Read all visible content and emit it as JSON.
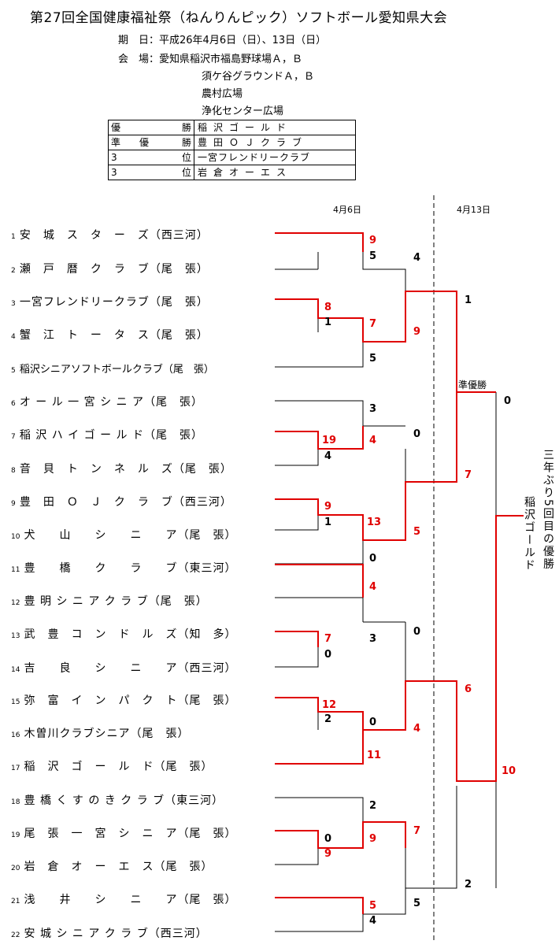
{
  "title": "第27回全国健康福祉祭（ねんりんピック）ソフトボール愛知県大会",
  "info": {
    "date_line": "期　日：平成26年4月6日（日）、13日（日）",
    "venue_line": "会　場：愛知県稲沢市福島野球場Ａ，Ｂ",
    "venue_extra": [
      "須ケ谷グラウンドＡ，Ｂ",
      "農村広場",
      "浄化センター広場"
    ]
  },
  "results": [
    {
      "rank_left": "優",
      "rank_right": "勝",
      "team": "稲沢ゴールド"
    },
    {
      "rank_left": "準　　優",
      "rank_right": "勝",
      "team": "豊田ＯＪクラブ"
    },
    {
      "rank_left": "3",
      "rank_right": "位",
      "team": "一宮フレンドリークラブ"
    },
    {
      "rank_left": "3",
      "rank_right": "位",
      "team": "岩倉オーエス"
    }
  ],
  "dates": [
    "4月6日",
    "4月13日"
  ],
  "teams": [
    {
      "no": "1",
      "name": "安　城　ス　タ　ー　ズ（西三河）"
    },
    {
      "no": "2",
      "name": "瀬　戸　暦　ク　ラ　ブ（尾　張）"
    },
    {
      "no": "3",
      "name": "一宮フレンドリークラブ（尾　張）"
    },
    {
      "no": "4",
      "name": "蟹　江　ト　ー　タ　ス（尾　張）"
    },
    {
      "no": "5",
      "name": "稲沢シニアソフトボールクラブ（尾　張）"
    },
    {
      "no": "6",
      "name": "オ ー ル 一 宮 シ ニ ア（尾　張）"
    },
    {
      "no": "7",
      "name": "稲 沢 ハ イ ゴ ー ル ド（尾　張）"
    },
    {
      "no": "8",
      "name": "音　貝　ト　ン　ネ　ル　ズ（尾　張）"
    },
    {
      "no": "9",
      "name": "豊　田　Ｏ　Ｊ　ク　ラ　ブ（西三河）"
    },
    {
      "no": "10",
      "name": "犬　　山　　シ　　ニ　　ア（尾　張）"
    },
    {
      "no": "11",
      "name": "豊　　橋　　ク　　ラ　　ブ（東三河）"
    },
    {
      "no": "12",
      "name": "豊 明 シ ニ ア ク ラ ブ（尾　張）"
    },
    {
      "no": "13",
      "name": "武　豊　コ　ン　ド　ル　ズ（知　多）"
    },
    {
      "no": "14",
      "name": "吉　　良　　シ　　ニ　　ア（西三河）"
    },
    {
      "no": "15",
      "name": "弥　富　イ　ン　パ　ク　ト（尾　張）"
    },
    {
      "no": "16",
      "name": "木曽川クラブシニア（尾　張）"
    },
    {
      "no": "17",
      "name": "稲　沢　ゴ　ー　ル　ド（尾　張）"
    },
    {
      "no": "18",
      "name": "豊 橋 く す の き ク ラ ブ（東三河）"
    },
    {
      "no": "19",
      "name": "尾　張　一　宮　シ　ニ　ア（尾　張）"
    },
    {
      "no": "20",
      "name": "岩　倉　オ　ー　エ　ス（尾　張）"
    },
    {
      "no": "21",
      "name": "浅　　井　　シ　　ニ　　ア（尾　張）"
    },
    {
      "no": "22",
      "name": "安 城 シ ニ ア ク ラ ブ（西三河）"
    }
  ],
  "scores": [
    {
      "v": "9",
      "red": true
    },
    {
      "v": "5",
      "red": false
    },
    {
      "v": "4",
      "red": false
    },
    {
      "v": "8",
      "red": true
    },
    {
      "v": "1",
      "red": false
    },
    {
      "v": "1",
      "red": false
    },
    {
      "v": "7",
      "red": true
    },
    {
      "v": "9",
      "red": true
    },
    {
      "v": "5",
      "red": false
    },
    {
      "v": "準優勝",
      "red": false
    },
    {
      "v": "0",
      "red": false
    },
    {
      "v": "3",
      "red": false
    },
    {
      "v": "0",
      "red": false
    },
    {
      "v": "19",
      "red": true
    },
    {
      "v": "4",
      "red": true
    },
    {
      "v": "4",
      "red": false
    },
    {
      "v": "7",
      "red": true
    },
    {
      "v": "9",
      "red": true
    },
    {
      "v": "1",
      "red": false
    },
    {
      "v": "13",
      "red": true
    },
    {
      "v": "5",
      "red": true
    },
    {
      "v": "0",
      "red": false
    },
    {
      "v": "4",
      "red": true
    },
    {
      "v": "0",
      "red": false
    },
    {
      "v": "7",
      "red": true
    },
    {
      "v": "3",
      "red": false
    },
    {
      "v": "0",
      "red": false
    },
    {
      "v": "6",
      "red": true
    },
    {
      "v": "12",
      "red": true
    },
    {
      "v": "0",
      "red": false
    },
    {
      "v": "2",
      "red": false
    },
    {
      "v": "4",
      "red": true
    },
    {
      "v": "11",
      "red": true
    },
    {
      "v": "10",
      "red": true
    },
    {
      "v": "2",
      "red": false
    },
    {
      "v": "0",
      "red": false
    },
    {
      "v": "9",
      "red": true
    },
    {
      "v": "7",
      "red": true
    },
    {
      "v": "9",
      "red": true
    },
    {
      "v": "2",
      "red": false
    },
    {
      "v": "5",
      "red": true
    },
    {
      "v": "4",
      "red": false
    },
    {
      "v": "5",
      "red": false
    }
  ],
  "vertical_note": "三年ぶり5回目の優勝",
  "champion_vertical": "稲沢ゴールド"
}
